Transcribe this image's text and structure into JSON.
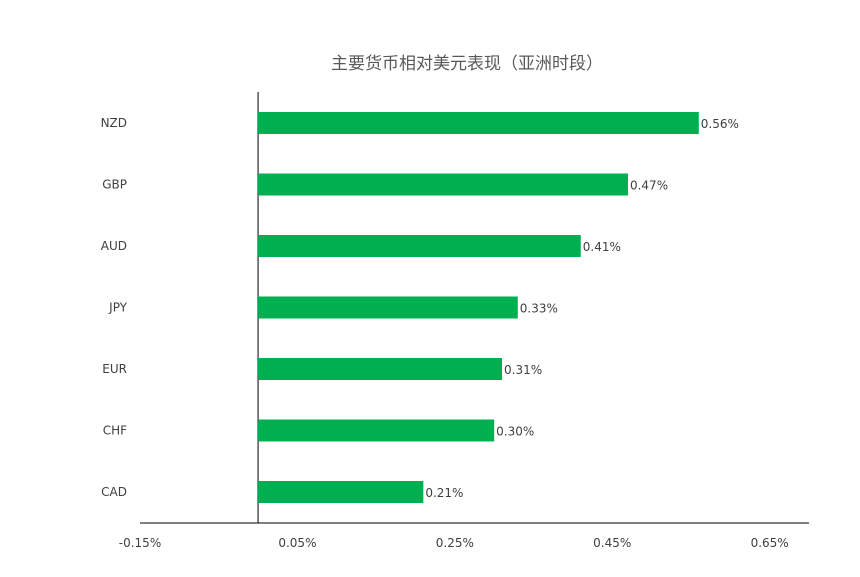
{
  "chart_data": {
    "type": "bar",
    "orientation": "horizontal",
    "title": "主要货币相对美元表现（亚洲时段）",
    "categories": [
      "NZD",
      "GBP",
      "AUD",
      "JPY",
      "EUR",
      "CHF",
      "CAD"
    ],
    "values": [
      0.56,
      0.47,
      0.41,
      0.33,
      0.31,
      0.3,
      0.21
    ],
    "value_labels": [
      "0.56%",
      "0.47%",
      "0.41%",
      "0.33%",
      "0.31%",
      "0.30%",
      "0.21%"
    ],
    "xlim": [
      -0.15,
      0.7
    ],
    "xticks": [
      -0.15,
      0.05,
      0.25,
      0.45,
      0.65
    ],
    "xtick_labels": [
      "-0.15%",
      "0.05%",
      "0.25%",
      "0.45%",
      "0.65%"
    ],
    "bar_color": "#00b050",
    "grid": false,
    "legend": "none"
  }
}
